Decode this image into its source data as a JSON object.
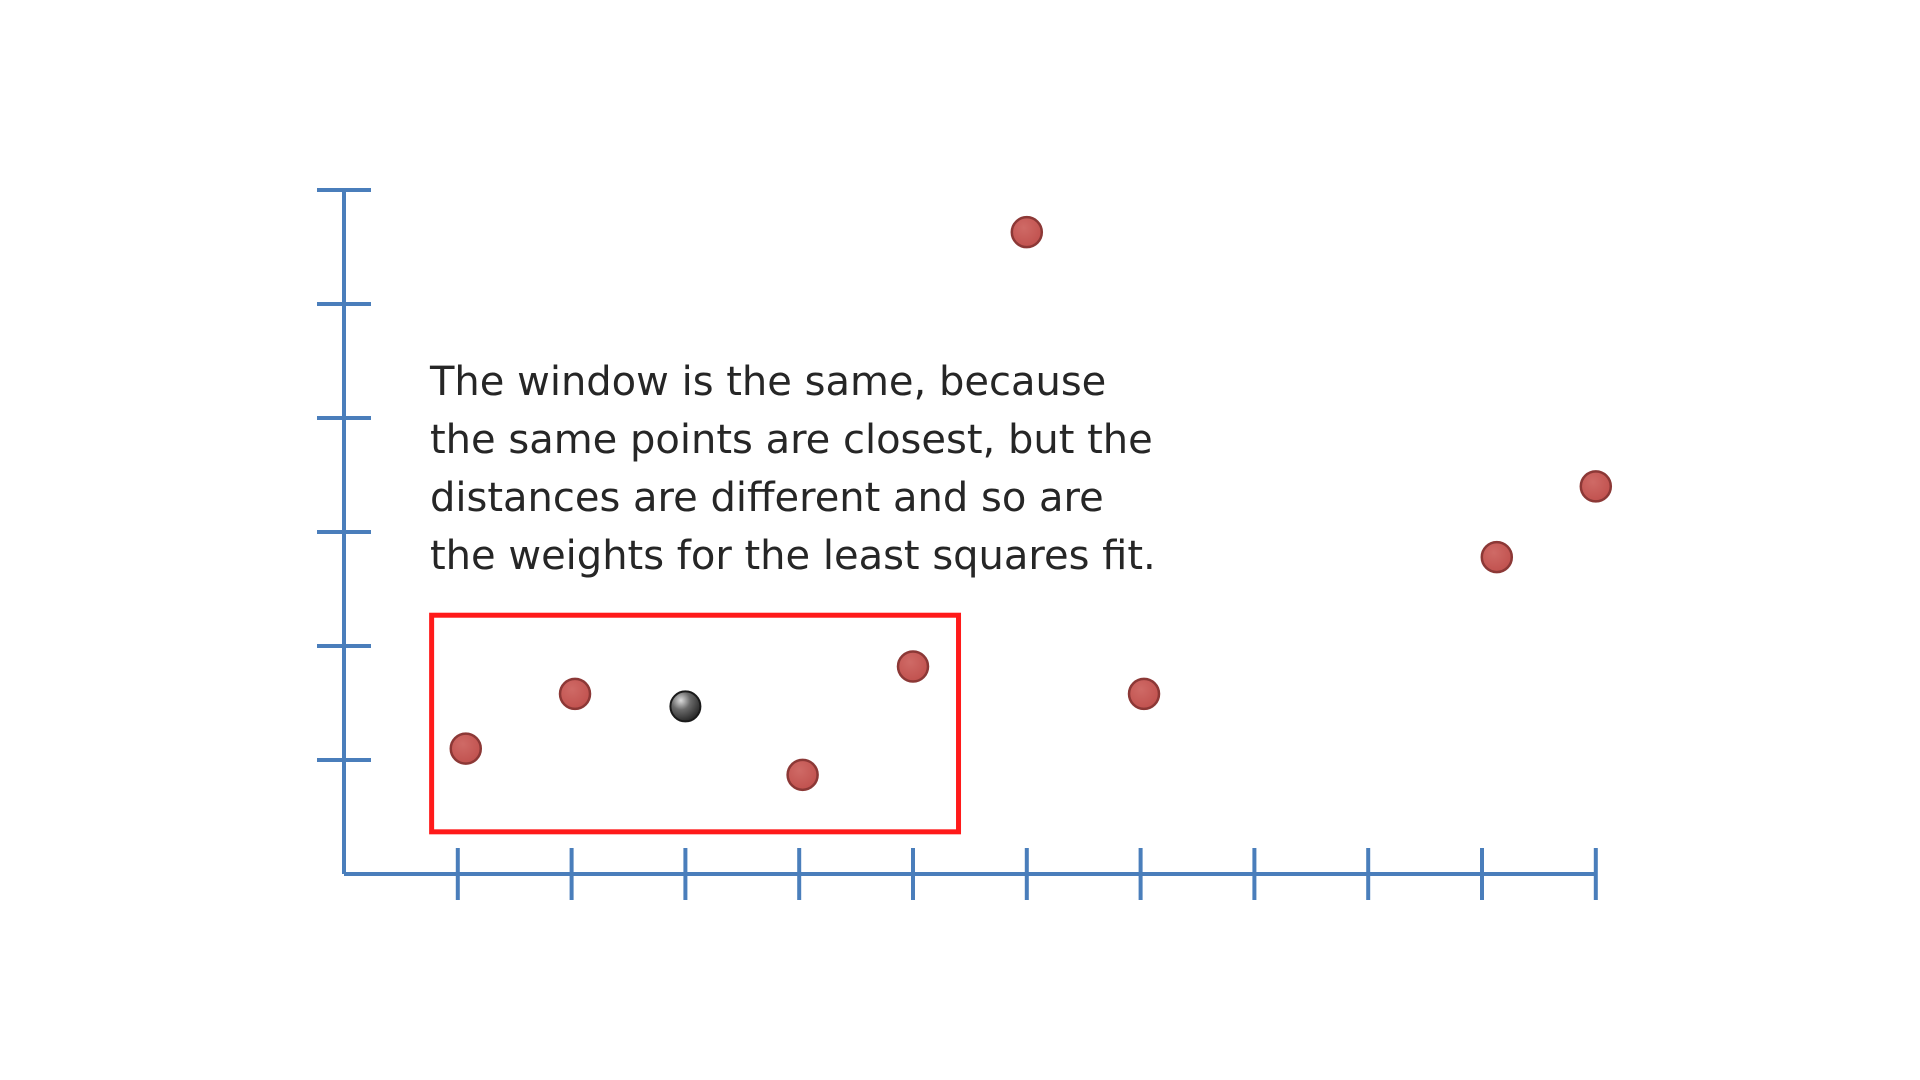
{
  "caption": {
    "lines": [
      "The window is the same, because",
      "the same points are closest, but the",
      "distances are different and so are",
      "the weights for the least squares fit."
    ]
  },
  "colors": {
    "axis": "#4a7ebb",
    "point_fill": "#c0504d",
    "point_stroke": "#8c3836",
    "query_point": "#2b2b2b",
    "window_box": "#ff1a1a",
    "background": "#ffffff"
  },
  "chart_data": {
    "type": "scatter",
    "xlim": [
      0,
      11
    ],
    "ylim": [
      0,
      6
    ],
    "x_ticks": [
      1,
      2,
      3,
      4,
      5,
      6,
      7,
      8,
      9,
      10,
      11
    ],
    "y_ticks": [
      1,
      2,
      3,
      4,
      5,
      6
    ],
    "tick_labels_shown": false,
    "grid": false,
    "points": [
      {
        "x": 1.07,
        "y": 1.1
      },
      {
        "x": 2.03,
        "y": 1.58
      },
      {
        "x": 4.03,
        "y": 0.87
      },
      {
        "x": 5.0,
        "y": 1.82
      },
      {
        "x": 6.0,
        "y": 5.63
      },
      {
        "x": 7.03,
        "y": 1.58
      },
      {
        "x": 10.13,
        "y": 2.78
      },
      {
        "x": 11.0,
        "y": 3.4
      }
    ],
    "query_point": {
      "x": 3.0,
      "y": 1.47
    },
    "window": {
      "x_range": [
        0.77,
        5.4
      ],
      "y_range": [
        0.37,
        2.27
      ]
    }
  }
}
